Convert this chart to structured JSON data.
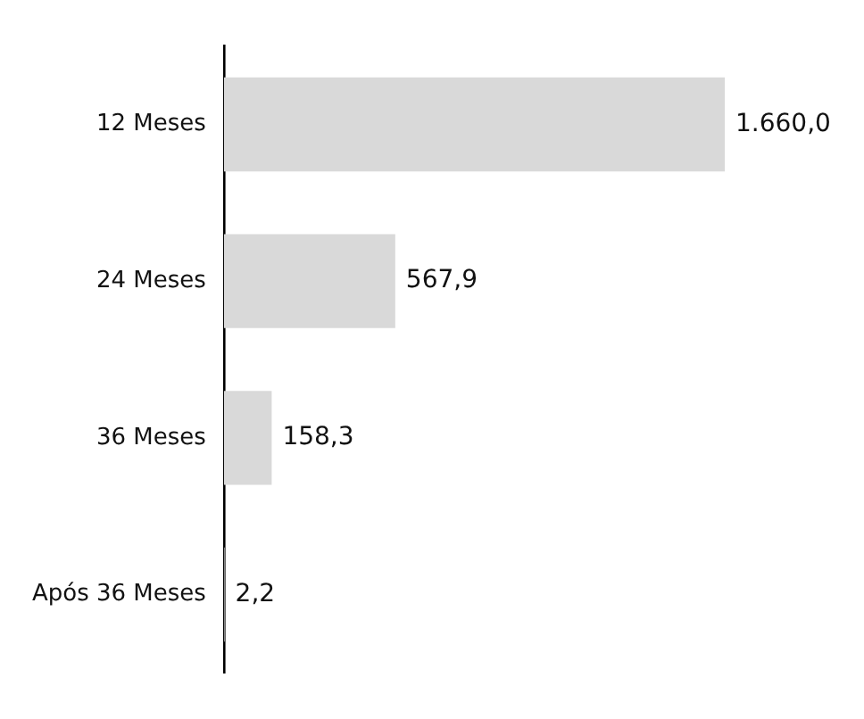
{
  "chart_data": {
    "type": "bar",
    "orientation": "horizontal",
    "categories": [
      "12 Meses",
      "24 Meses",
      "36 Meses",
      "Após 36 Meses"
    ],
    "values": [
      1660.0,
      567.9,
      158.3,
      2.2
    ],
    "value_labels": [
      "1.660,0",
      "567,9",
      "158,3",
      "2,2"
    ],
    "color": "#d9d9d9"
  }
}
